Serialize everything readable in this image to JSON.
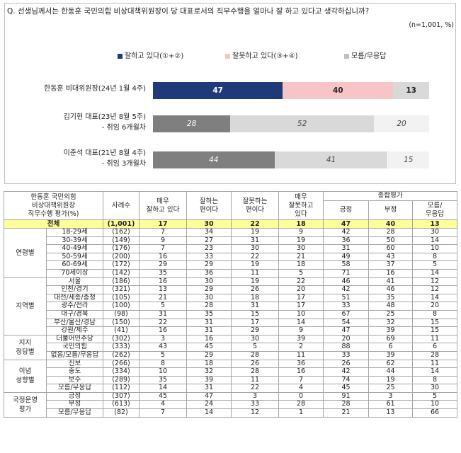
{
  "question": "Q. 선생님께서는 한동훈 국민의힘 비상대책위원장이 당 대표로서의 직무수행을 얼마나 잘 하고 있다고 생각하십니까?",
  "note": "(n=1,001, %)",
  "colors": {
    "good": "#1f3a7a",
    "bad": "#f7c4c8",
    "unknown": "#d9d9d9",
    "good_past": "#7f7f7f",
    "bad_past": "#d9d9d9",
    "unknown_past": "#f2f2f2",
    "total_row": "#ffff99"
  },
  "chart_data": {
    "type": "bar",
    "orientation": "horizontal",
    "stacked": true,
    "categories": [
      "한동훈 비대위원장(24년 1월 4주)",
      "김기현 대표(23년 8월 5주)\n- 취임 6개월차",
      "이준석 대표(21년 8월 4주)\n- 취임 3개월차"
    ],
    "series": [
      {
        "name": "잘하고 있다(①+②)",
        "values": [
          47,
          28,
          44
        ]
      },
      {
        "name": "잘못하고 있다(③+④)",
        "values": [
          40,
          52,
          41
        ]
      },
      {
        "name": "모름/무응답",
        "values": [
          13,
          20,
          15
        ]
      }
    ],
    "xlim": [
      0,
      100
    ],
    "legend": "top"
  },
  "table": {
    "header": {
      "corner": "한동훈 국민의힘\n비상대책위원장\n직무수행 평가(%)",
      "n": "사례수",
      "c1": "매우\n잘하고 있다",
      "c2": "잘하는\n편이다",
      "c3": "잘못하는\n편이다",
      "c4": "매우\n잘못하고\n있다",
      "summary": "종합평가",
      "s1": "긍정",
      "s2": "부정",
      "s3": "모름/\n무응답"
    },
    "total": {
      "label": "전체",
      "cells": [
        "(1,001)",
        "17",
        "30",
        "22",
        "18",
        "47",
        "40",
        "13"
      ]
    },
    "groups": [
      {
        "name": "연령별",
        "rows": [
          {
            "label": "18-29세",
            "cells": [
              "(162)",
              "7",
              "34",
              "19",
              "9",
              "42",
              "28",
              "30"
            ]
          },
          {
            "label": "30-39세",
            "cells": [
              "(149)",
              "9",
              "27",
              "31",
              "19",
              "36",
              "50",
              "14"
            ]
          },
          {
            "label": "40-49세",
            "cells": [
              "(176)",
              "7",
              "23",
              "30",
              "30",
              "31",
              "60",
              "10"
            ]
          },
          {
            "label": "50-59세",
            "cells": [
              "(200)",
              "16",
              "33",
              "22",
              "21",
              "49",
              "43",
              "8"
            ]
          },
          {
            "label": "60-69세",
            "cells": [
              "(172)",
              "29",
              "29",
              "19",
              "18",
              "58",
              "37",
              "5"
            ]
          },
          {
            "label": "70세이상",
            "cells": [
              "(142)",
              "35",
              "36",
              "11",
              "5",
              "71",
              "16",
              "14"
            ]
          }
        ]
      },
      {
        "name": "지역별",
        "rows": [
          {
            "label": "서울",
            "cells": [
              "(186)",
              "16",
              "30",
              "19",
              "22",
              "46",
              "41",
              "12"
            ]
          },
          {
            "label": "인천/경기",
            "cells": [
              "(321)",
              "13",
              "29",
              "26",
              "20",
              "42",
              "46",
              "12"
            ]
          },
          {
            "label": "대전/세종/충청",
            "cells": [
              "(105)",
              "21",
              "30",
              "18",
              "17",
              "51",
              "35",
              "14"
            ]
          },
          {
            "label": "광주/전라",
            "cells": [
              "(100)",
              "5",
              "28",
              "31",
              "17",
              "33",
              "48",
              "20"
            ]
          },
          {
            "label": "대구/경북",
            "cells": [
              "(98)",
              "31",
              "35",
              "15",
              "10",
              "67",
              "25",
              "8"
            ]
          },
          {
            "label": "부산/울산/경남",
            "cells": [
              "(150)",
              "22",
              "31",
              "17",
              "14",
              "54",
              "32",
              "15"
            ]
          },
          {
            "label": "강원/제주",
            "cells": [
              "(41)",
              "16",
              "31",
              "29",
              "9",
              "47",
              "39",
              "15"
            ]
          }
        ]
      },
      {
        "name": "지지\n정당별",
        "rows": [
          {
            "label": "더불어민주당",
            "cells": [
              "(302)",
              "3",
              "16",
              "30",
              "39",
              "20",
              "69",
              "11"
            ]
          },
          {
            "label": "국민의힘",
            "cells": [
              "(333)",
              "43",
              "45",
              "5",
              "2",
              "88",
              "6",
              "6"
            ]
          },
          {
            "label": "없음/모름/무응답",
            "cells": [
              "(262)",
              "5",
              "29",
              "28",
              "11",
              "33",
              "39",
              "28"
            ]
          }
        ]
      },
      {
        "name": "이념\n성향별",
        "rows": [
          {
            "label": "진보",
            "cells": [
              "(266)",
              "8",
              "18",
              "26",
              "36",
              "26",
              "62",
              "11"
            ]
          },
          {
            "label": "중도",
            "cells": [
              "(334)",
              "10",
              "32",
              "28",
              "16",
              "42",
              "44",
              "14"
            ]
          },
          {
            "label": "보수",
            "cells": [
              "(289)",
              "35",
              "39",
              "11",
              "7",
              "74",
              "19",
              "8"
            ]
          },
          {
            "label": "모름/무응답",
            "cells": [
              "(112)",
              "14",
              "31",
              "22",
              "4",
              "45",
              "25",
              "30"
            ]
          }
        ]
      },
      {
        "name": "국정운영\n평가",
        "rows": [
          {
            "label": "긍정",
            "cells": [
              "(307)",
              "45",
              "47",
              "3",
              "0",
              "91",
              "3",
              "5"
            ]
          },
          {
            "label": "부정",
            "cells": [
              "(613)",
              "4",
              "24",
              "33",
              "28",
              "28",
              "61",
              "10"
            ]
          },
          {
            "label": "모름/무응답",
            "cells": [
              "(82)",
              "7",
              "14",
              "12",
              "1",
              "21",
              "13",
              "66"
            ]
          }
        ]
      }
    ]
  }
}
